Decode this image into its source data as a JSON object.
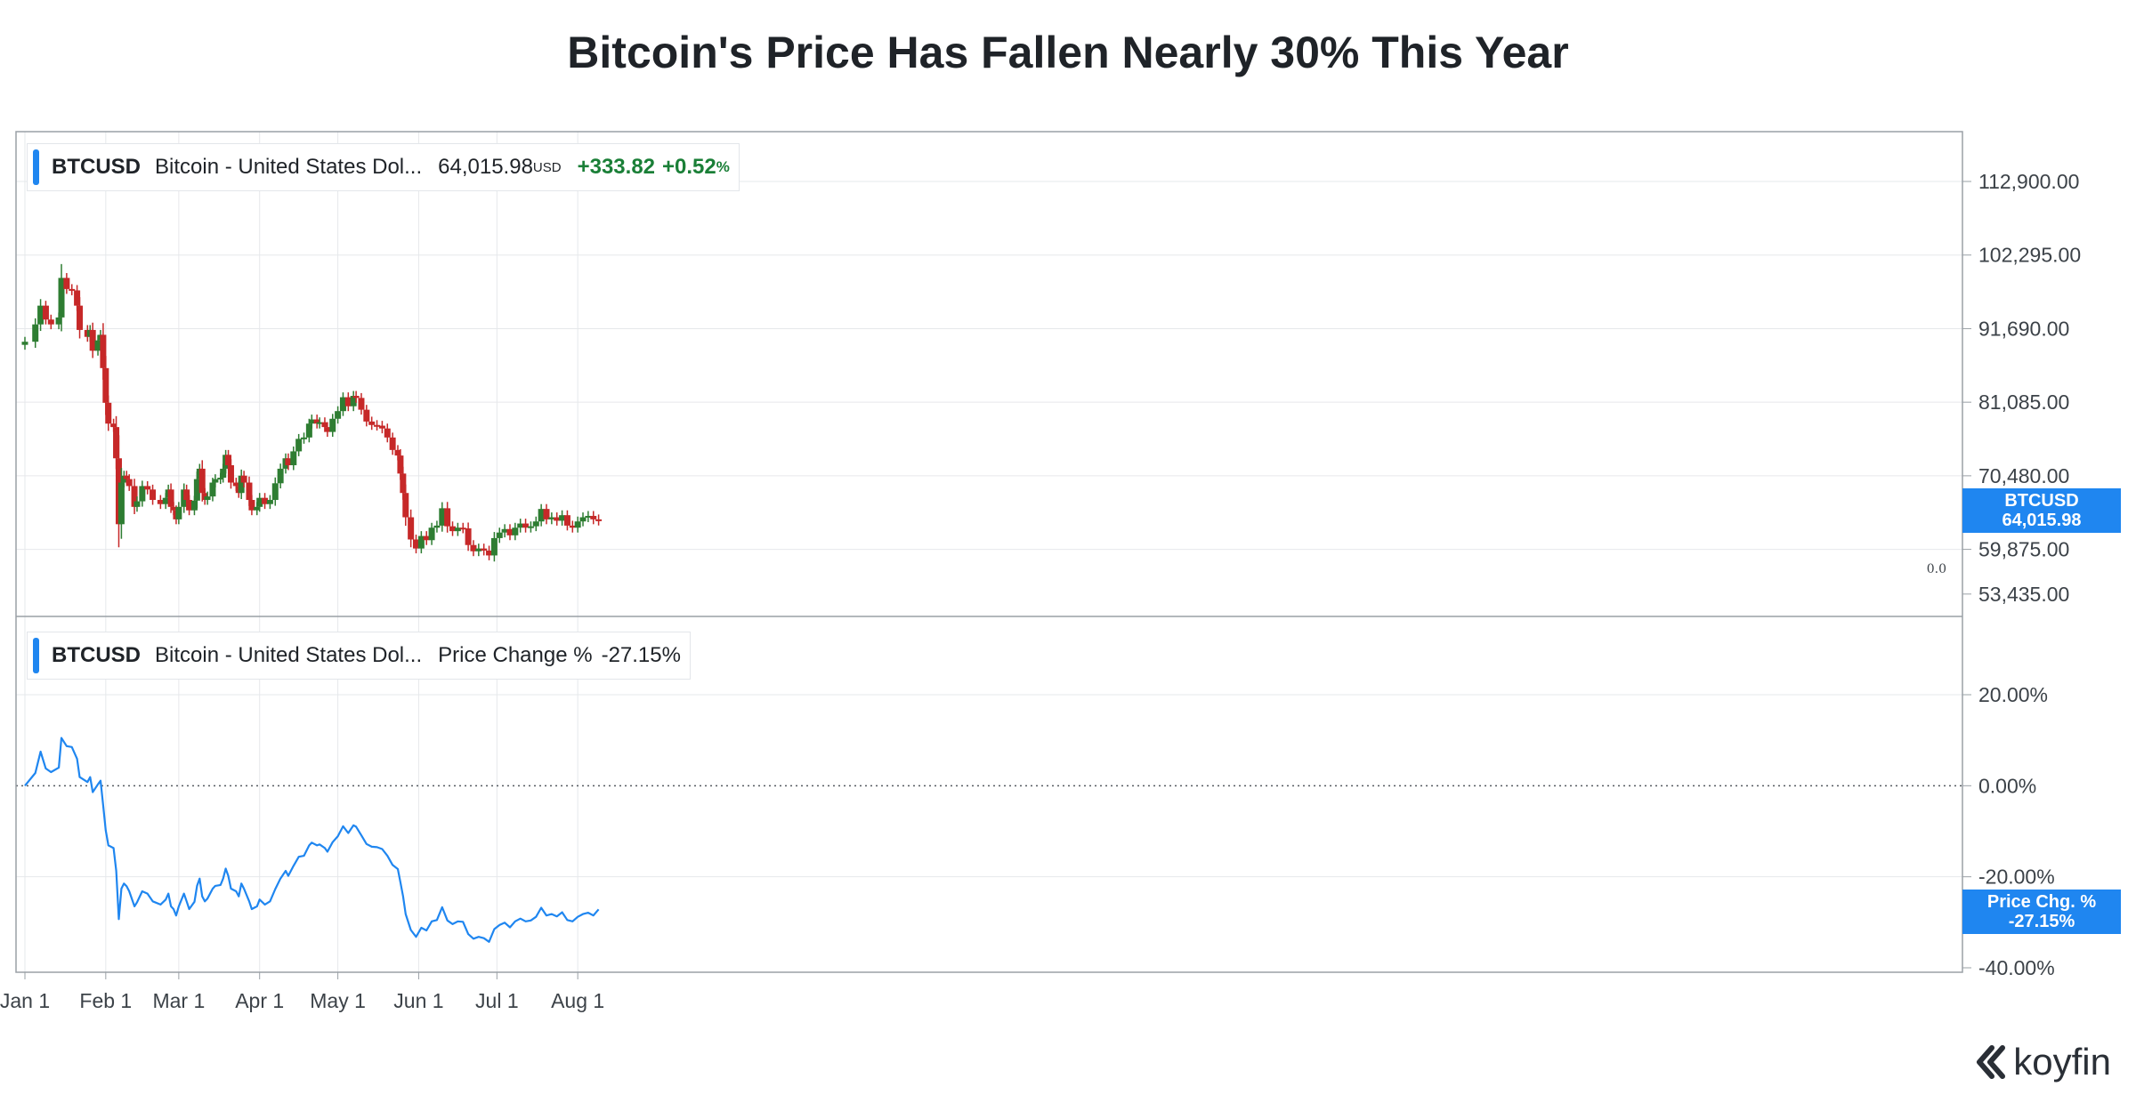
{
  "title": "Bitcoin's Price Has Fallen Nearly 30% This Year",
  "price_legend": {
    "symbol": "BTCUSD",
    "name": "Bitcoin - United States Dol...",
    "price": "64,015.98",
    "unit": "USD",
    "change": "+333.82",
    "change_pct": "+0.52",
    "pct_symbol": "%"
  },
  "change_legend": {
    "symbol": "BTCUSD",
    "name": "Bitcoin - United States Dol...",
    "metric": "Price Change %",
    "value": "-27.15%"
  },
  "price_tag": {
    "line1": "BTCUSD",
    "line2": "64,015.98"
  },
  "change_tag": {
    "line1": "Price Chg. %",
    "line2": "-27.15%"
  },
  "zero_marker": "0.0",
  "logo": "koyfin",
  "colors": {
    "up": "#2e7d32",
    "down": "#c62828",
    "line": "#1f86f0",
    "accent": "#1f86f0"
  },
  "chart_data": [
    {
      "type": "candlestick",
      "title": "BTCUSD Bitcoin - United States Dollar",
      "ylabel": "",
      "y_ticks": [
        "112,900.00",
        "102,295.00",
        "91,690.00",
        "81,085.00",
        "70,480.00",
        "59,875.00",
        "53,435.00"
      ],
      "y_tick_values": [
        112900,
        102295,
        91690,
        81085,
        70480,
        59875,
        53435
      ],
      "ylim": [
        53435,
        120000
      ],
      "x_ticks": [
        "Jan 1",
        "Feb 1",
        "Mar 1",
        "Apr 1",
        "May 1",
        "Jun 1",
        "Jul 1",
        "Aug 1"
      ],
      "x_tick_days": [
        0,
        31,
        59,
        90,
        120,
        151,
        181,
        212
      ],
      "grid": true,
      "close_series": [
        {
          "day": 0,
          "close": 89800
        },
        {
          "day": 4,
          "close": 92300
        },
        {
          "day": 6,
          "close": 95000
        },
        {
          "day": 8,
          "close": 93000
        },
        {
          "day": 10,
          "close": 92300
        },
        {
          "day": 13,
          "close": 93300
        },
        {
          "day": 14,
          "close": 99000
        },
        {
          "day": 16,
          "close": 97400
        },
        {
          "day": 18,
          "close": 97200
        },
        {
          "day": 20,
          "close": 95000
        },
        {
          "day": 21,
          "close": 91500
        },
        {
          "day": 24,
          "close": 90500
        },
        {
          "day": 25,
          "close": 91500
        },
        {
          "day": 26,
          "close": 88500
        },
        {
          "day": 28,
          "close": 90000
        },
        {
          "day": 29,
          "close": 90800
        },
        {
          "day": 30,
          "close": 86000
        },
        {
          "day": 31,
          "close": 81000
        },
        {
          "day": 32,
          "close": 78000
        },
        {
          "day": 34,
          "close": 77500
        },
        {
          "day": 35,
          "close": 73000
        },
        {
          "day": 36,
          "close": 63500
        },
        {
          "day": 37,
          "close": 69500
        },
        {
          "day": 38,
          "close": 70500
        },
        {
          "day": 39,
          "close": 70000
        },
        {
          "day": 40,
          "close": 69000
        },
        {
          "day": 42,
          "close": 66000
        },
        {
          "day": 43,
          "close": 66800
        },
        {
          "day": 45,
          "close": 69000
        },
        {
          "day": 47,
          "close": 68500
        },
        {
          "day": 49,
          "close": 67000
        },
        {
          "day": 52,
          "close": 66400
        },
        {
          "day": 54,
          "close": 67300
        },
        {
          "day": 55,
          "close": 68500
        },
        {
          "day": 56,
          "close": 66000
        },
        {
          "day": 57,
          "close": 65500
        },
        {
          "day": 58,
          "close": 64200
        },
        {
          "day": 59,
          "close": 66000
        },
        {
          "day": 61,
          "close": 68500
        },
        {
          "day": 62,
          "close": 67000
        },
        {
          "day": 63,
          "close": 65500
        },
        {
          "day": 65,
          "close": 66900
        },
        {
          "day": 66,
          "close": 70000
        },
        {
          "day": 67,
          "close": 71500
        },
        {
          "day": 68,
          "close": 68000
        },
        {
          "day": 69,
          "close": 67000
        },
        {
          "day": 70,
          "close": 67500
        },
        {
          "day": 72,
          "close": 69500
        },
        {
          "day": 73,
          "close": 70000
        },
        {
          "day": 75,
          "close": 70200
        },
        {
          "day": 76,
          "close": 71500
        },
        {
          "day": 77,
          "close": 73500
        },
        {
          "day": 78,
          "close": 72000
        },
        {
          "day": 79,
          "close": 69500
        },
        {
          "day": 81,
          "close": 69000
        },
        {
          "day": 82,
          "close": 68000
        },
        {
          "day": 83,
          "close": 70500
        },
        {
          "day": 84,
          "close": 69500
        },
        {
          "day": 86,
          "close": 67000
        },
        {
          "day": 87,
          "close": 65500
        },
        {
          "day": 89,
          "close": 66000
        },
        {
          "day": 90,
          "close": 67300
        },
        {
          "day": 92,
          "close": 66400
        },
        {
          "day": 94,
          "close": 67000
        },
        {
          "day": 96,
          "close": 69400
        },
        {
          "day": 98,
          "close": 71500
        },
        {
          "day": 100,
          "close": 73000
        },
        {
          "day": 101,
          "close": 72000
        },
        {
          "day": 103,
          "close": 74000
        },
        {
          "day": 105,
          "close": 75800
        },
        {
          "day": 107,
          "close": 76000
        },
        {
          "day": 109,
          "close": 78000
        },
        {
          "day": 110,
          "close": 78600
        },
        {
          "day": 112,
          "close": 78000
        },
        {
          "day": 113,
          "close": 78200
        },
        {
          "day": 115,
          "close": 77500
        },
        {
          "day": 116,
          "close": 76800
        },
        {
          "day": 118,
          "close": 78700
        },
        {
          "day": 120,
          "close": 79800
        },
        {
          "day": 122,
          "close": 81800
        },
        {
          "day": 124,
          "close": 80500
        },
        {
          "day": 126,
          "close": 82000
        },
        {
          "day": 127,
          "close": 81700
        },
        {
          "day": 129,
          "close": 80000
        },
        {
          "day": 131,
          "close": 78300
        },
        {
          "day": 133,
          "close": 77800
        },
        {
          "day": 135,
          "close": 77700
        },
        {
          "day": 137,
          "close": 77300
        },
        {
          "day": 139,
          "close": 76000
        },
        {
          "day": 141,
          "close": 74200
        },
        {
          "day": 143,
          "close": 73400
        },
        {
          "day": 144,
          "close": 70800
        },
        {
          "day": 145,
          "close": 68000
        },
        {
          "day": 146,
          "close": 64500
        },
        {
          "day": 148,
          "close": 61300
        },
        {
          "day": 150,
          "close": 60000
        },
        {
          "day": 152,
          "close": 61800
        },
        {
          "day": 154,
          "close": 61200
        },
        {
          "day": 156,
          "close": 63000
        },
        {
          "day": 158,
          "close": 63300
        },
        {
          "day": 160,
          "close": 65800
        },
        {
          "day": 162,
          "close": 63200
        },
        {
          "day": 164,
          "close": 62500
        },
        {
          "day": 166,
          "close": 63000
        },
        {
          "day": 168,
          "close": 62900
        },
        {
          "day": 170,
          "close": 60500
        },
        {
          "day": 172,
          "close": 59600
        },
        {
          "day": 174,
          "close": 60000
        },
        {
          "day": 176,
          "close": 59700
        },
        {
          "day": 178,
          "close": 59000
        },
        {
          "day": 180,
          "close": 61500
        },
        {
          "day": 182,
          "close": 62300
        },
        {
          "day": 184,
          "close": 62800
        },
        {
          "day": 186,
          "close": 61900
        },
        {
          "day": 188,
          "close": 63000
        },
        {
          "day": 190,
          "close": 63600
        },
        {
          "day": 192,
          "close": 63000
        },
        {
          "day": 194,
          "close": 63200
        },
        {
          "day": 196,
          "close": 63900
        },
        {
          "day": 198,
          "close": 65700
        },
        {
          "day": 200,
          "close": 64200
        },
        {
          "day": 202,
          "close": 64500
        },
        {
          "day": 204,
          "close": 64000
        },
        {
          "day": 206,
          "close": 64800
        },
        {
          "day": 208,
          "close": 63300
        },
        {
          "day": 210,
          "close": 63000
        },
        {
          "day": 212,
          "close": 63900
        },
        {
          "day": 214,
          "close": 64500
        },
        {
          "day": 216,
          "close": 64700
        },
        {
          "day": 218,
          "close": 64200
        },
        {
          "day": 220,
          "close": 64016
        }
      ],
      "last_value": "64,015.98"
    },
    {
      "type": "line",
      "title": "BTCUSD Price Change %",
      "series": [
        {
          "name": "Price Change %",
          "x": [
            0,
            4,
            6,
            8,
            10,
            13,
            14,
            16,
            18,
            20,
            21,
            24,
            25,
            26,
            28,
            29,
            30,
            31,
            32,
            34,
            35,
            36,
            37,
            38,
            39,
            40,
            42,
            43,
            45,
            47,
            49,
            52,
            54,
            55,
            56,
            57,
            58,
            59,
            61,
            62,
            63,
            65,
            66,
            67,
            68,
            69,
            70,
            72,
            73,
            75,
            76,
            77,
            78,
            79,
            81,
            82,
            83,
            84,
            86,
            87,
            89,
            90,
            92,
            94,
            96,
            98,
            100,
            101,
            103,
            105,
            107,
            109,
            110,
            112,
            113,
            115,
            116,
            118,
            120,
            122,
            124,
            126,
            127,
            129,
            131,
            133,
            135,
            137,
            139,
            141,
            143,
            144,
            145,
            146,
            148,
            150,
            152,
            154,
            156,
            158,
            160,
            162,
            164,
            166,
            168,
            170,
            172,
            174,
            176,
            178,
            180,
            182,
            184,
            186,
            188,
            190,
            192,
            194,
            196,
            198,
            200,
            202,
            204,
            206,
            208,
            210,
            212,
            214,
            216,
            218,
            220
          ],
          "y": [
            0.0,
            2.8,
            7.5,
            3.8,
            3.0,
            4.0,
            10.5,
            8.7,
            8.5,
            5.9,
            1.9,
            0.8,
            1.9,
            -1.4,
            0.3,
            1.1,
            -4.3,
            -9.8,
            -13.1,
            -13.7,
            -18.7,
            -29.3,
            -22.6,
            -21.5,
            -22.1,
            -23.2,
            -26.5,
            -25.6,
            -23.2,
            -23.7,
            -25.4,
            -26.1,
            -25.0,
            -23.7,
            -26.5,
            -27.1,
            -28.5,
            -26.5,
            -23.7,
            -25.4,
            -27.1,
            -25.5,
            -22.0,
            -20.4,
            -24.3,
            -25.4,
            -24.8,
            -22.6,
            -22.0,
            -21.8,
            -20.4,
            -18.2,
            -19.8,
            -22.6,
            -23.2,
            -24.3,
            -21.5,
            -22.6,
            -25.4,
            -27.1,
            -26.5,
            -25.0,
            -26.1,
            -25.4,
            -22.7,
            -20.4,
            -18.7,
            -19.8,
            -17.6,
            -15.6,
            -15.4,
            -13.1,
            -12.5,
            -13.1,
            -12.9,
            -13.7,
            -14.5,
            -12.4,
            -11.1,
            -8.9,
            -10.4,
            -8.7,
            -9.0,
            -10.9,
            -12.8,
            -13.4,
            -13.5,
            -13.9,
            -15.4,
            -17.4,
            -18.3,
            -21.2,
            -24.3,
            -28.2,
            -31.7,
            -33.2,
            -31.2,
            -31.8,
            -29.8,
            -29.5,
            -26.7,
            -29.6,
            -30.4,
            -29.8,
            -29.9,
            -32.6,
            -33.6,
            -33.2,
            -33.5,
            -34.3,
            -31.5,
            -30.6,
            -30.1,
            -31.1,
            -29.8,
            -29.2,
            -29.8,
            -29.6,
            -28.8,
            -26.8,
            -28.5,
            -28.2,
            -28.7,
            -27.8,
            -29.5,
            -29.8,
            -28.8,
            -28.2,
            -27.9,
            -28.5,
            -27.15
          ]
        }
      ],
      "y_ticks": [
        "20.00%",
        "0.00%",
        "-20.00%",
        "-40.00%"
      ],
      "y_tick_values": [
        20,
        0,
        -20,
        -40
      ],
      "ylim": [
        -40,
        20
      ],
      "x_ticks": [
        "Jan 1",
        "Feb 1",
        "Mar 1",
        "Apr 1",
        "May 1",
        "Jun 1",
        "Jul 1",
        "Aug 1"
      ],
      "grid": true
    }
  ]
}
